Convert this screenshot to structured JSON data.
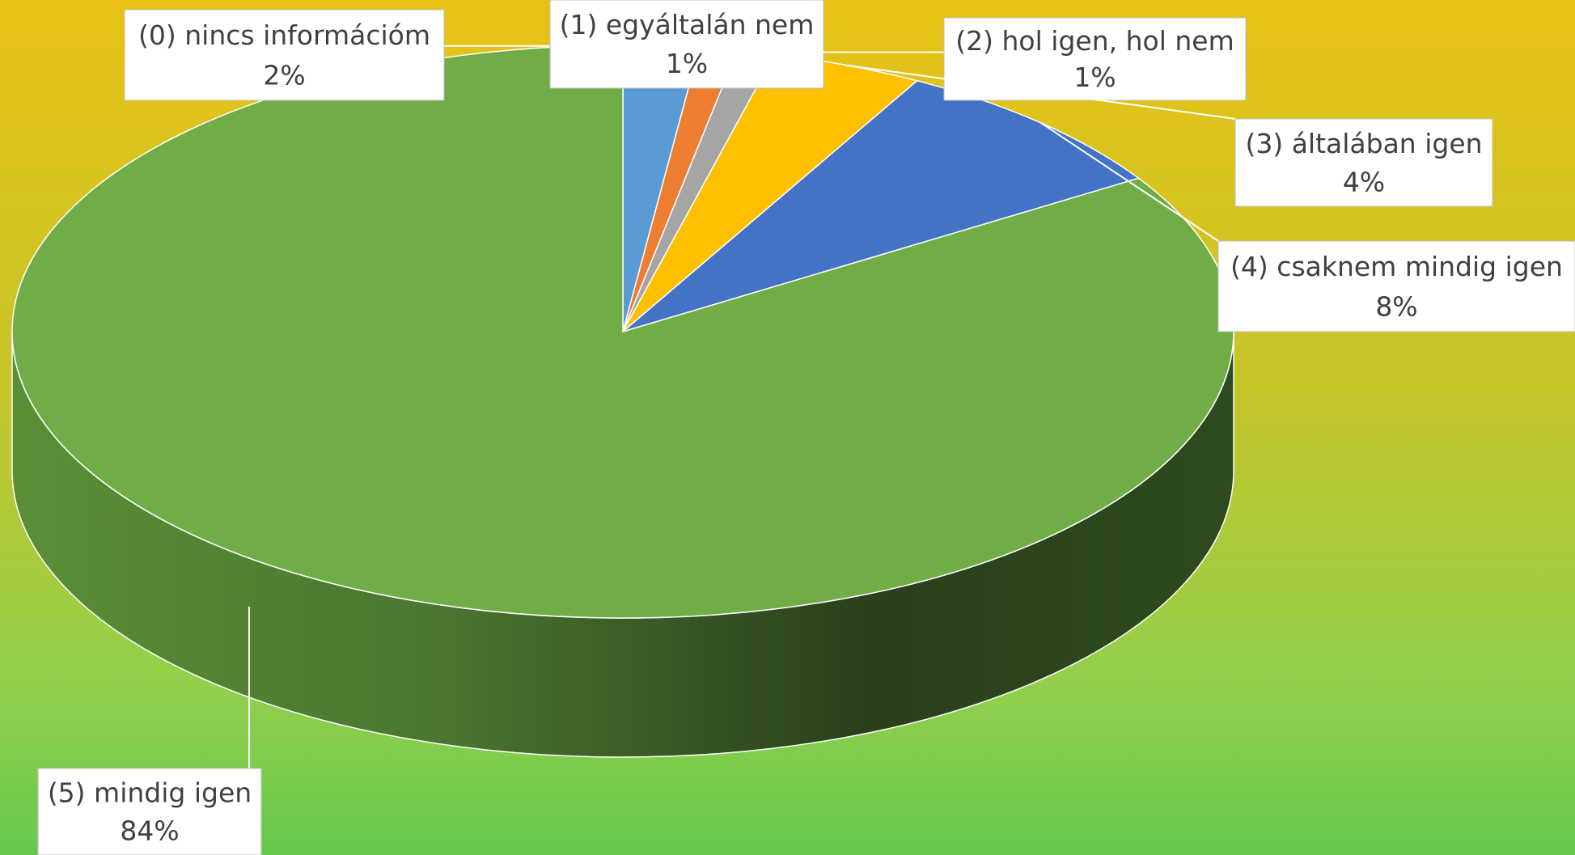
{
  "chart_data": {
    "type": "pie3d",
    "categories": [
      "(0) nincs információm",
      "(1) egyáltalán nem",
      "(2) hol igen, hol nem",
      "(3) általában igen",
      "(4) csaknem mindig igen",
      "(5) mindig igen"
    ],
    "values": [
      2,
      1,
      1,
      4,
      8,
      84
    ],
    "value_labels": [
      "2%",
      "1%",
      "1%",
      "4%",
      "8%",
      "84%"
    ],
    "colors": [
      "#5b9bd5",
      "#ed7d31",
      "#a5a5a5",
      "#ffc000",
      "#4472c4",
      "#70ad47"
    ]
  }
}
